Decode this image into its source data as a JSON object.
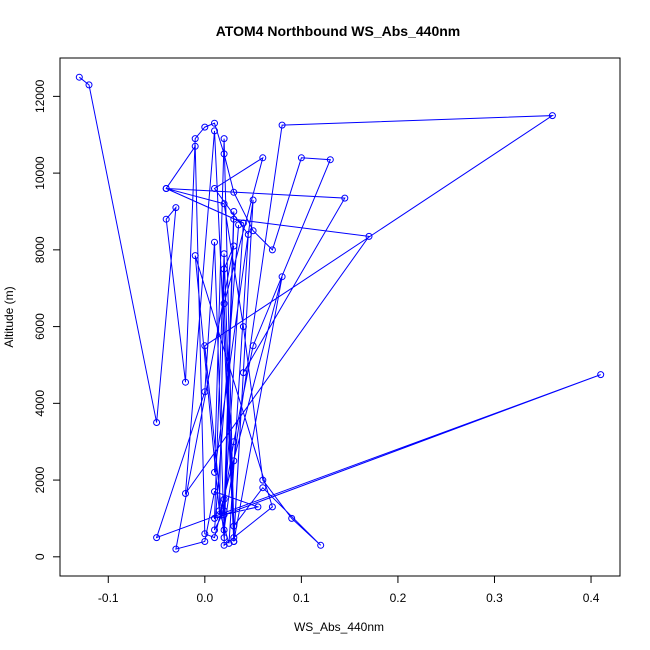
{
  "chart_data": {
    "type": "line",
    "title": "ATOM4 Northbound WS_Abs_440nm",
    "xlabel": "WS_Abs_440nm",
    "ylabel": "Altitude (m)",
    "xlim": [
      -0.15,
      0.43
    ],
    "ylim": [
      -500,
      13000
    ],
    "x_ticks": [
      -0.1,
      0.0,
      0.1,
      0.2,
      0.3,
      0.4
    ],
    "x_tick_labels": [
      "-0.1",
      "0.0",
      "0.1",
      "0.2",
      "0.3",
      "0.4"
    ],
    "y_ticks": [
      0,
      2000,
      4000,
      6000,
      8000,
      10000,
      12000
    ],
    "y_tick_labels": [
      "0",
      "2000",
      "4000",
      "6000",
      "8000",
      "10000",
      "12000"
    ],
    "grid": false,
    "series": [
      {
        "color": "#0000ff",
        "marker": "open-circle",
        "x": [
          -0.13,
          -0.12,
          -0.05,
          -0.03,
          -0.04,
          -0.02,
          -0.01,
          0.0,
          0.01,
          0.02,
          0.03,
          0.05,
          0.07,
          0.1,
          0.13,
          0.05,
          0.03,
          0.02,
          0.01,
          0.0,
          -0.01,
          -0.04,
          0.02,
          0.04,
          0.06,
          0.09,
          0.12,
          0.06,
          0.03,
          0.02,
          0.01,
          0.05,
          0.03,
          0.01,
          -0.02,
          0.17,
          0.03,
          0.02,
          0.0,
          0.36,
          0.08,
          0.03,
          0.02,
          0.01,
          0.0,
          -0.05,
          0.41,
          0.01,
          0.02,
          0.03,
          0.04,
          0.145,
          -0.04,
          0.04,
          0.02,
          0.055,
          0.01,
          0.0,
          -0.03,
          0.03,
          0.02,
          0.015,
          0.08,
          0.03,
          0.02,
          0.06,
          0.01,
          0.045,
          0.025,
          0.015,
          -0.01,
          0.07,
          0.02,
          0.03,
          0.02,
          0.01,
          0.035
        ],
        "y": [
          12500,
          12300,
          3500,
          9100,
          8800,
          4550,
          10900,
          11200,
          11300,
          10500,
          9500,
          8500,
          8000,
          10400,
          10350,
          5500,
          3000,
          1500,
          500,
          600,
          10700,
          9600,
          9200,
          6000,
          2000,
          1000,
          300,
          1800,
          800,
          10900,
          2200,
          9300,
          400,
          11100,
          1650,
          8350,
          8800,
          500,
          5500,
          11500,
          11250,
          2500,
          700,
          8200,
          4300,
          500,
          4750,
          1000,
          7900,
          500,
          4800,
          9350,
          9600,
          8700,
          1100,
          1300,
          1700,
          400,
          200,
          8100,
          7500,
          1100,
          7300,
          400,
          6600,
          10400,
          9600,
          8400,
          350,
          1200,
          7850,
          1300,
          300,
          9000,
          1200,
          700,
          8650
        ]
      }
    ]
  }
}
